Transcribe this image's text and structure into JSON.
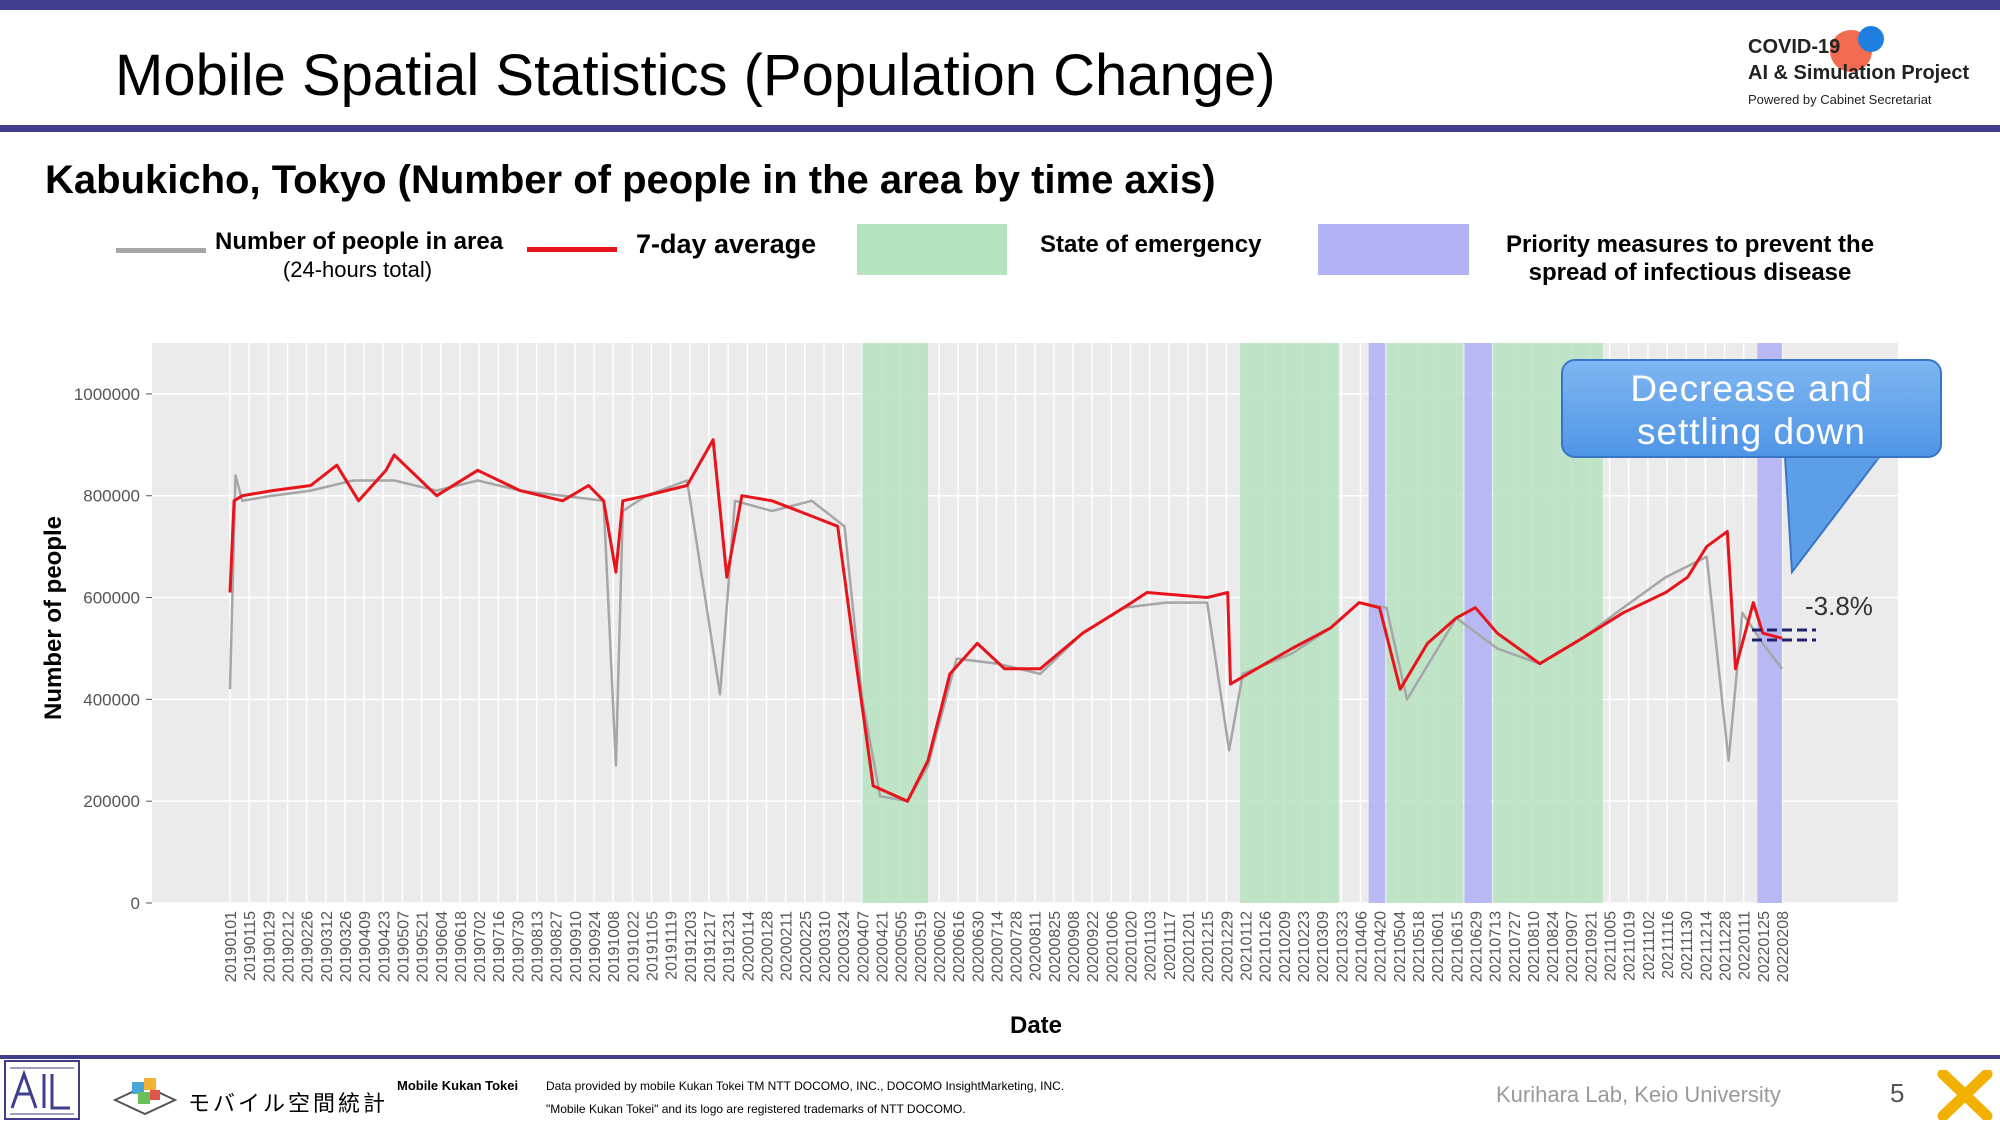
{
  "slide": {
    "title": "Mobile Spatial Statistics (Population Change)",
    "logo": {
      "line1": "COVID-19",
      "line2": "AI & Simulation Project",
      "line3": "Powered by Cabinet Secretariat"
    },
    "subtitle": "Kabukicho, Tokyo (Number of people in the area by time axis)",
    "legend": {
      "daily_label_line1": "Number of people in area",
      "daily_label_line2": "(24-hours total)",
      "avg_label": "7-day average",
      "emergency_label": "State of emergency",
      "priority_label_line1": "Priority measures to prevent the",
      "priority_label_line2": "spread of infectious disease"
    },
    "callout": {
      "line1": "Decrease and",
      "line2": "settling down"
    },
    "footer": {
      "brand_jp": "モバイル空間統計",
      "brand_en": "Mobile Kukan Tokei",
      "credit_line1": "Data provided by mobile Kukan Tokei TM NTT DOCOMO, INC., DOCOMO InsightMarketing, INC.",
      "credit_line2": "\"Mobile Kukan Tokei\" and its logo are registered trademarks of NTT DOCOMO.",
      "lab": "Kurihara Lab, Keio University",
      "page": "5"
    },
    "colors": {
      "accent": "#3f3d8c",
      "daily": "#a6a6a6",
      "avg": "#e8141c",
      "emergency": "#b7e2bf",
      "priority": "#b3b3f5",
      "plot_bg": "#ebebeb"
    }
  },
  "chart_data": {
    "type": "line",
    "xlabel": "Date",
    "ylabel": "Number of people",
    "ylim": [
      0,
      1100000
    ],
    "yticks": [
      0,
      200000,
      400000,
      600000,
      800000,
      1000000
    ],
    "grid": true,
    "x_tick_labels": [
      "20190101",
      "20190115",
      "20190129",
      "20190212",
      "20190226",
      "20190312",
      "20190326",
      "20190409",
      "20190423",
      "20190507",
      "20190521",
      "20190604",
      "20190618",
      "20190702",
      "20190716",
      "20190730",
      "20190813",
      "20190827",
      "20190910",
      "20190924",
      "20191008",
      "20191022",
      "20191105",
      "20191119",
      "20191203",
      "20191217",
      "20191231",
      "20200114",
      "20200128",
      "20200211",
      "20200225",
      "20200310",
      "20200324",
      "20200407",
      "20200421",
      "20200505",
      "20200519",
      "20200602",
      "20200616",
      "20200630",
      "20200714",
      "20200728",
      "20200811",
      "20200825",
      "20200908",
      "20200922",
      "20201006",
      "20201020",
      "20201103",
      "20201117",
      "20201201",
      "20201215",
      "20201229",
      "20210112",
      "20210126",
      "20210209",
      "20210223",
      "20210309",
      "20210323",
      "20210406",
      "20210420",
      "20210504",
      "20210518",
      "20210601",
      "20210615",
      "20210629",
      "20210713",
      "20210727",
      "20210810",
      "20210824",
      "20210907",
      "20210921",
      "20211005",
      "20211019",
      "20211102",
      "20211116",
      "20211130",
      "20211214",
      "20211228",
      "20220111",
      "20220125",
      "20220208"
    ],
    "emergency_periods": [
      [
        "20200407",
        "20200525"
      ],
      [
        "20210108",
        "20210321"
      ],
      [
        "20210425",
        "20210620"
      ],
      [
        "20210712",
        "20210930"
      ]
    ],
    "priority_periods": [
      [
        "20210412",
        "20210424"
      ],
      [
        "20210621",
        "20210711"
      ],
      [
        "20220121",
        "20220208"
      ]
    ],
    "series": [
      {
        "name": "Number of people in area (24-hours total)",
        "x": [
          "20190101",
          "20190105",
          "20190110",
          "20190201",
          "20190301",
          "20190401",
          "20190501",
          "20190601",
          "20190701",
          "20190801",
          "20190901",
          "20191001",
          "20191010",
          "20191015",
          "20191101",
          "20191201",
          "20191225",
          "20200105",
          "20200201",
          "20200301",
          "20200325",
          "20200407",
          "20200420",
          "20200510",
          "20200525",
          "20200615",
          "20200715",
          "20200815",
          "20200915",
          "20201015",
          "20201115",
          "20201215",
          "20201231",
          "20210110",
          "20210215",
          "20210315",
          "20210405",
          "20210425",
          "20210510",
          "20210615",
          "20210715",
          "20210815",
          "20210915",
          "20211015",
          "20211115",
          "20211215",
          "20211231",
          "20220110",
          "20220125",
          "20220208"
        ],
        "values": [
          420000,
          840000,
          790000,
          800000,
          810000,
          830000,
          830000,
          810000,
          830000,
          810000,
          800000,
          790000,
          270000,
          770000,
          800000,
          830000,
          410000,
          790000,
          770000,
          790000,
          740000,
          400000,
          210000,
          200000,
          270000,
          480000,
          470000,
          450000,
          530000,
          580000,
          590000,
          590000,
          300000,
          450000,
          490000,
          540000,
          590000,
          580000,
          400000,
          560000,
          500000,
          470000,
          520000,
          580000,
          640000,
          680000,
          280000,
          570000,
          510000,
          460000
        ]
      },
      {
        "name": "7-day average",
        "x": [
          "20190101",
          "20190104",
          "20190110",
          "20190201",
          "20190301",
          "20190320",
          "20190405",
          "20190425",
          "20190501",
          "20190601",
          "20190701",
          "20190801",
          "20190901",
          "20190920",
          "20191001",
          "20191010",
          "20191015",
          "20191101",
          "20191201",
          "20191220",
          "20191230",
          "20200110",
          "20200201",
          "20200301",
          "20200320",
          "20200401",
          "20200415",
          "20200510",
          "20200525",
          "20200610",
          "20200630",
          "20200720",
          "20200815",
          "20200915",
          "20201015",
          "20201101",
          "20201215",
          "20201230",
          "20210101",
          "20210120",
          "20210215",
          "20210315",
          "20210405",
          "20210420",
          "20210505",
          "20210525",
          "20210615",
          "20210629",
          "20210715",
          "20210815",
          "20210915",
          "20211015",
          "20211115",
          "20211201",
          "20211215",
          "20211230",
          "20220105",
          "20220118",
          "20220125",
          "20220208"
        ],
        "values": [
          610000,
          790000,
          800000,
          810000,
          820000,
          860000,
          790000,
          850000,
          880000,
          800000,
          850000,
          810000,
          790000,
          820000,
          790000,
          650000,
          790000,
          800000,
          820000,
          910000,
          640000,
          800000,
          790000,
          760000,
          740000,
          500000,
          230000,
          200000,
          280000,
          450000,
          510000,
          460000,
          460000,
          530000,
          580000,
          610000,
          600000,
          610000,
          430000,
          460000,
          500000,
          540000,
          590000,
          580000,
          420000,
          510000,
          560000,
          580000,
          530000,
          470000,
          520000,
          570000,
          610000,
          640000,
          700000,
          730000,
          460000,
          590000,
          530000,
          520000
        ]
      }
    ],
    "annotation": "-3.8%"
  }
}
